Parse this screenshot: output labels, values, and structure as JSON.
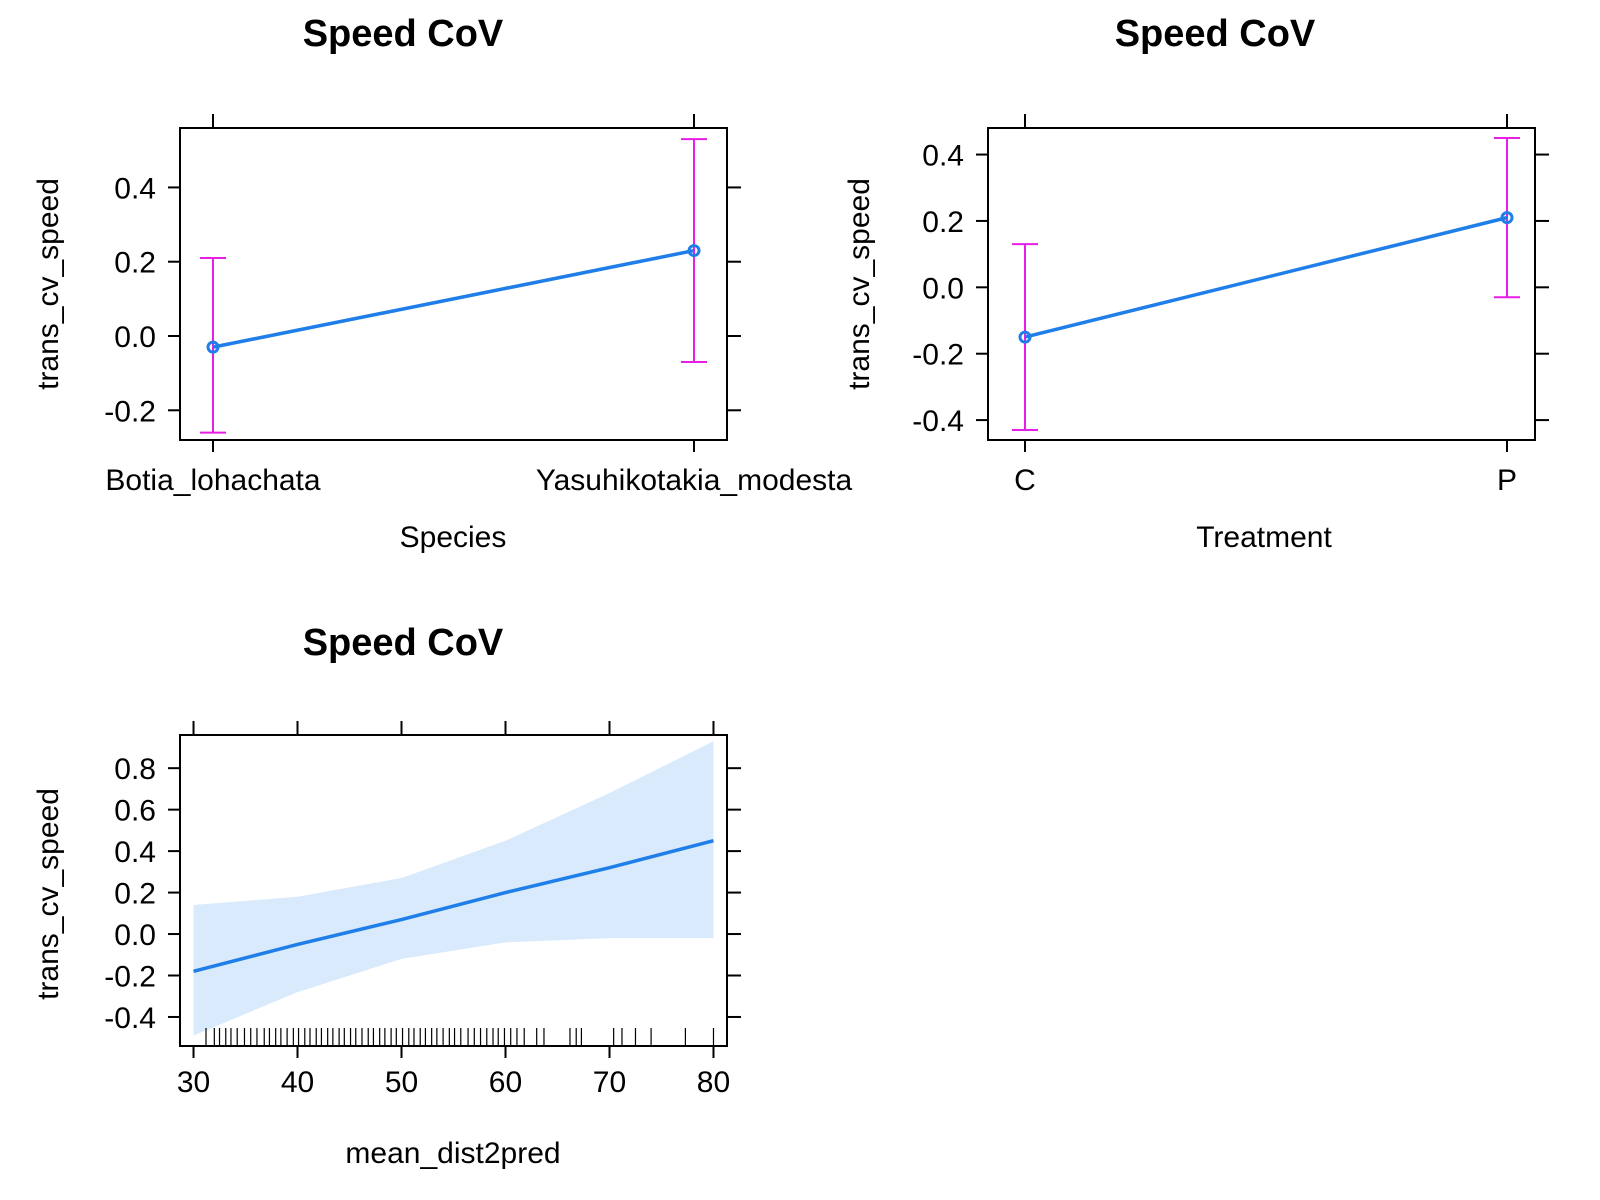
{
  "colors": {
    "line": "#1f7ee8",
    "ci_bars": "#e61ee6",
    "band": "#d8eafc",
    "frame": "#000000",
    "rug": "#000000"
  },
  "chart_data": [
    {
      "type": "line",
      "title": "Speed CoV",
      "xlabel": "Species",
      "ylabel": "trans_cv_speed",
      "categories": [
        "Botia_lohachata",
        "Yasuhikotakia_modesta"
      ],
      "values": [
        -0.03,
        0.23
      ],
      "lower": [
        -0.26,
        -0.07
      ],
      "upper": [
        0.21,
        0.53
      ],
      "yticks": [
        "-0.2",
        "0.0",
        "0.2",
        "0.4"
      ],
      "ylim": [
        -0.28,
        0.56
      ],
      "error_bars": true,
      "grid": false
    },
    {
      "type": "line",
      "title": "Speed CoV",
      "xlabel": "Treatment",
      "ylabel": "trans_cv_speed",
      "categories": [
        "C",
        "P"
      ],
      "values": [
        -0.15,
        0.21
      ],
      "lower": [
        -0.43,
        -0.03
      ],
      "upper": [
        0.13,
        0.45
      ],
      "yticks": [
        "-0.4",
        "-0.2",
        "0.0",
        "0.2",
        "0.4"
      ],
      "ylim": [
        -0.46,
        0.48
      ],
      "error_bars": true,
      "grid": false
    },
    {
      "type": "line",
      "title": "Speed CoV",
      "xlabel": "mean_dist2pred",
      "ylabel": "trans_cv_speed",
      "x": [
        30,
        40,
        50,
        60,
        70,
        80
      ],
      "y": [
        -0.18,
        -0.05,
        0.07,
        0.2,
        0.32,
        0.45
      ],
      "band_lower": [
        -0.49,
        -0.28,
        -0.12,
        -0.04,
        -0.02,
        -0.02
      ],
      "band_upper": [
        0.14,
        0.18,
        0.27,
        0.45,
        0.68,
        0.93
      ],
      "xticks": [
        "30",
        "40",
        "50",
        "60",
        "70",
        "80"
      ],
      "yticks": [
        "-0.4",
        "-0.2",
        "0.0",
        "0.2",
        "0.4",
        "0.6",
        "0.8"
      ],
      "xlim": [
        28.7,
        81.3
      ],
      "ylim": [
        -0.54,
        0.96
      ],
      "rug": [
        31.2,
        32.0,
        32.5,
        33.1,
        33.6,
        34.2,
        34.9,
        35.5,
        36.1,
        36.8,
        37.3,
        37.9,
        38.4,
        39.0,
        39.6,
        40.1,
        40.7,
        41.2,
        41.8,
        42.3,
        42.9,
        43.4,
        44.0,
        44.5,
        45.1,
        45.6,
        46.2,
        46.8,
        47.3,
        47.9,
        48.4,
        49.0,
        49.5,
        50.1,
        50.7,
        51.2,
        51.8,
        52.3,
        52.9,
        53.4,
        54.0,
        54.6,
        55.1,
        55.7,
        56.4,
        57.0,
        57.6,
        58.2,
        58.8,
        59.3,
        59.9,
        60.5,
        61.1,
        61.8,
        63.0,
        63.7,
        66.2,
        66.8,
        67.3,
        70.4,
        71.2,
        72.5,
        74.0,
        77.3,
        80.0
      ],
      "grid": false
    }
  ]
}
